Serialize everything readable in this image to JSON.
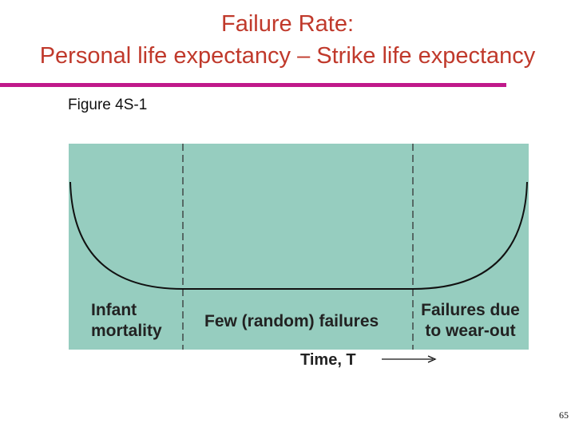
{
  "slide": {
    "title_line1": "Failure Rate:",
    "title_line2": "Personal life expectancy – Strike life expectancy",
    "figure_label": "Figure 4S-1",
    "page_number": "65"
  },
  "diagram": {
    "regions": [
      {
        "label": "Infant mortality"
      },
      {
        "label": "Few (random) failures"
      },
      {
        "label": "Failures due to wear-out"
      }
    ],
    "x_axis_label": "Time, T",
    "colors": {
      "background": "#96cdbf",
      "curve": "#111111",
      "title": "#c0392b",
      "rule": "#c0198a"
    }
  }
}
